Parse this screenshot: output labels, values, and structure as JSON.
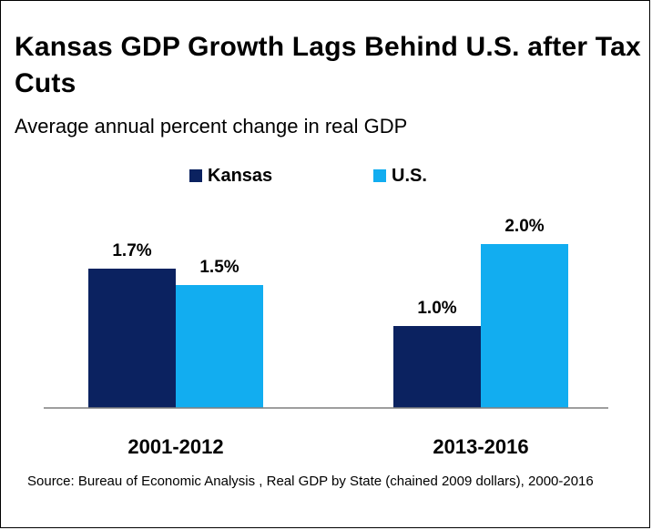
{
  "title": "Kansas GDP Growth Lags Behind U.S. after Tax Cuts",
  "subtitle": "Average annual percent change in real GDP",
  "source": "Source: Bureau of Economic Analysis ,  Real GDP by State (chained 2009 dollars), 2000-2016",
  "colors": {
    "kansas": "#0b2260",
    "us": "#12adf0",
    "axis": "#7f7f7f"
  },
  "chart_data": {
    "type": "bar",
    "categories": [
      "2001-2012",
      "2013-2016"
    ],
    "series": [
      {
        "name": "Kansas",
        "values": [
          1.7,
          1.0
        ],
        "labels": [
          "1.7%",
          "1.0%"
        ]
      },
      {
        "name": "U.S.",
        "values": [
          1.5,
          2.0
        ],
        "labels": [
          "1.5%",
          "2.0%"
        ]
      }
    ],
    "title": "Kansas GDP Growth Lags Behind U.S. after Tax Cuts",
    "xlabel": "",
    "ylabel": "Average annual percent change in real GDP",
    "ylim": [
      0,
      2.0
    ],
    "legend": "top-center",
    "grid": false
  }
}
